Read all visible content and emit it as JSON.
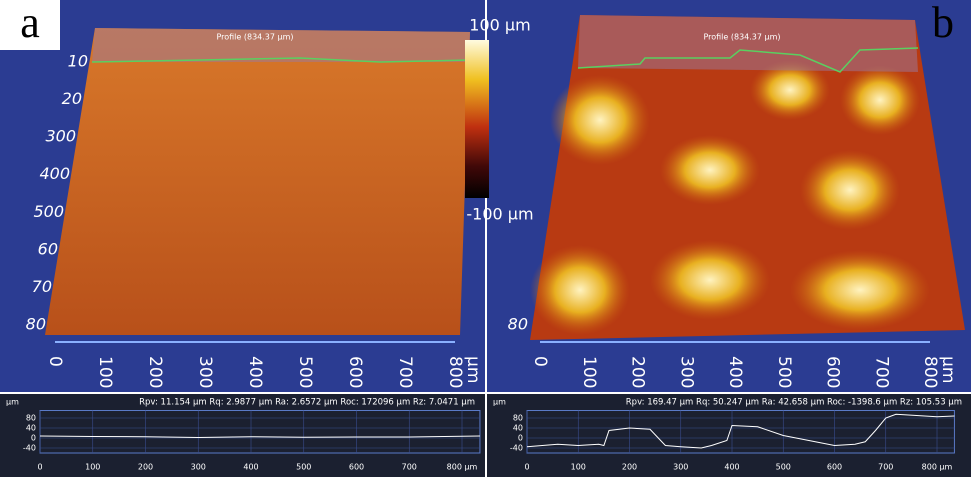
{
  "colorbar": {
    "max_label": "100 µm",
    "min_label": "-100 µm"
  },
  "panels": [
    {
      "label": "a",
      "profile_tag": "Profile (834.37 µm)",
      "surface_x_ticks": [
        0,
        100,
        200,
        300,
        400,
        500,
        600,
        700,
        800
      ],
      "surface_x_unit": "µm",
      "surface_y_labels": [
        "10",
        "20",
        "300",
        "400",
        "500",
        "60",
        "70",
        "80"
      ],
      "profile_chart": {
        "y_unit": "µm",
        "stats": "Rpv: 11.154 µm  Rq: 2.9877 µm  Ra: 2.6572 µm  Roc: 172096 µm  Rz: 7.0471 µm",
        "xlim": [
          0,
          834
        ],
        "ylim": [
          -60,
          110
        ],
        "yticks": [
          80,
          40,
          0,
          -40
        ],
        "xticks": [
          0,
          100,
          200,
          300,
          400,
          500,
          600,
          700,
          {
            "value": 800,
            "label": "800 µm"
          }
        ],
        "x": [
          0,
          100,
          200,
          300,
          400,
          500,
          600,
          700,
          800,
          834
        ],
        "values": [
          8,
          6,
          5,
          2,
          5,
          3,
          4,
          4,
          7,
          8
        ]
      }
    },
    {
      "label": "b",
      "profile_tag": "Profile (834.37 µm)",
      "surface_x_ticks": [
        0,
        100,
        200,
        300,
        400,
        500,
        600,
        700,
        800
      ],
      "surface_x_unit": "µm",
      "surface_y_labels": [
        "80"
      ],
      "profile_chart": {
        "y_unit": "µm",
        "stats": "Rpv: 169.47 µm  Rq: 50.247 µm  Ra: 42.658 µm  Roc: -1398.6 µm  Rz: 105.53 µm",
        "xlim": [
          0,
          834
        ],
        "ylim": [
          -60,
          110
        ],
        "yticks": [
          80,
          40,
          0,
          -40
        ],
        "xticks": [
          0,
          100,
          200,
          300,
          400,
          500,
          600,
          700,
          {
            "value": 800,
            "label": "800 µm"
          }
        ],
        "x": [
          0,
          30,
          60,
          100,
          140,
          150,
          160,
          200,
          240,
          270,
          300,
          340,
          360,
          390,
          400,
          450,
          500,
          550,
          600,
          640,
          660,
          680,
          700,
          720,
          760,
          800,
          834
        ],
        "values": [
          -35,
          -30,
          -25,
          -30,
          -25,
          -30,
          30,
          40,
          35,
          -30,
          -35,
          -40,
          -30,
          -10,
          50,
          45,
          10,
          -10,
          -30,
          -25,
          -15,
          30,
          80,
          95,
          90,
          85,
          88
        ]
      }
    }
  ]
}
